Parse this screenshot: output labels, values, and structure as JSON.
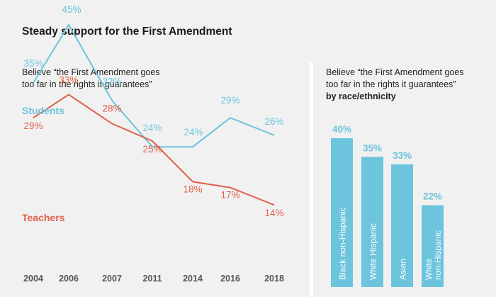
{
  "title": "Steady support for the First Amendment",
  "chart_data": [
    {
      "type": "line",
      "subtitle_lines": [
        "Believe “the First Amendment goes",
        "too far in the rights it guarantees”"
      ],
      "x": [
        "2004",
        "2006",
        "2007",
        "2011",
        "2014",
        "2016",
        "2018"
      ],
      "series": [
        {
          "name": "Students",
          "values": [
            35,
            45,
            32,
            24,
            24,
            29,
            26
          ],
          "labels": [
            "35%",
            "45%",
            "32%",
            "24%",
            "24%",
            "29%",
            "26%"
          ],
          "color": "#6cc4dd"
        },
        {
          "name": "Teachers",
          "values": [
            29,
            33,
            28,
            25,
            18,
            17,
            14
          ],
          "labels": [
            "29%",
            "33%",
            "28%",
            "25%",
            "18%",
            "17%",
            "14%"
          ],
          "color": "#e0604a"
        }
      ],
      "xlabel": "",
      "ylabel": "",
      "grid": false,
      "legend": "inline labels"
    },
    {
      "type": "bar",
      "subtitle_lines": [
        "Believe “the First Amendment goes",
        "too far in the rights it guarantees”"
      ],
      "subtitle_bold": "by race/ethnicity",
      "categories": [
        "Black non-Hispanic",
        "White Hispanic",
        "Asian",
        "White non-Hispanic"
      ],
      "category_lines": [
        [
          "Black non-Hispanic"
        ],
        [
          "White Hispanic"
        ],
        [
          "Asian"
        ],
        [
          "White",
          "non-Hispanic"
        ]
      ],
      "values": [
        40,
        35,
        33,
        22
      ],
      "labels": [
        "40%",
        "35%",
        "33%",
        "22%"
      ],
      "color": "#6cc4dd",
      "ylim": [
        0,
        40
      ]
    }
  ],
  "colors": {
    "background": "#f1f1f1",
    "students": "#6cc4dd",
    "teachers": "#e0604a",
    "bar": "#6cc4dd",
    "bar_label": "#6cc4dd",
    "axis_text": "#555555"
  }
}
